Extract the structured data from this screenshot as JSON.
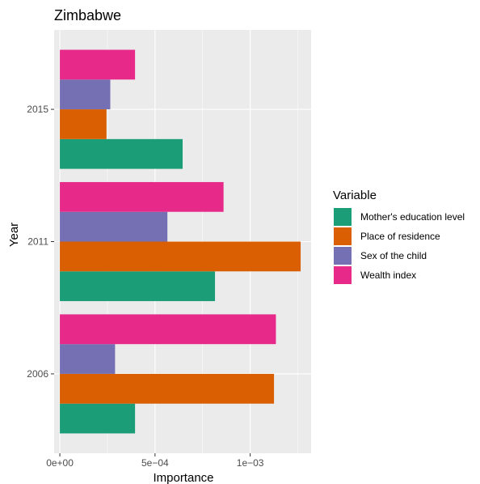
{
  "chart_data": {
    "type": "bar",
    "orientation": "horizontal",
    "title": "Zimbabwe",
    "xlabel": "Importance",
    "ylabel": "Year",
    "xlim": [
      -3e-05,
      0.00132
    ],
    "x_ticks": [
      0,
      0.0005,
      0.001
    ],
    "x_tick_labels": [
      "0e+00",
      "5e−04",
      "1e−03"
    ],
    "categories": [
      "2006",
      "2011",
      "2015"
    ],
    "series": [
      {
        "name": "Mother's education level",
        "color": "#1b9e77",
        "values": [
          0.000395,
          0.000815,
          0.000645
        ]
      },
      {
        "name": "Place of residence",
        "color": "#d95f02",
        "values": [
          0.001125,
          0.001265,
          0.000245
        ]
      },
      {
        "name": "Sex of the child",
        "color": "#7570b3",
        "values": [
          0.00029,
          0.000565,
          0.000265
        ]
      },
      {
        "name": "Wealth index",
        "color": "#e7298a",
        "values": [
          0.001135,
          0.00086,
          0.000395
        ]
      }
    ],
    "legend_title": "Variable",
    "legend_position": "right",
    "grid": true,
    "panel_background": "#ebebeb"
  }
}
